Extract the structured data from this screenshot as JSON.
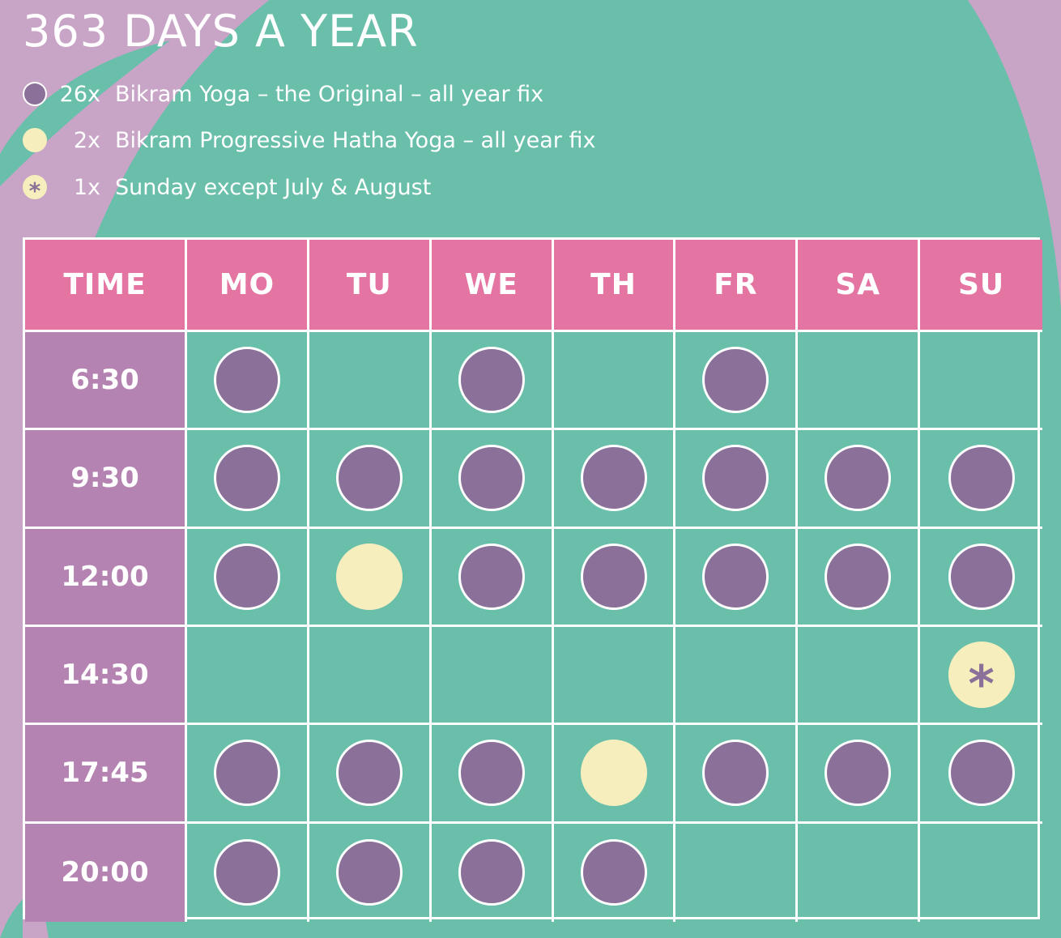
{
  "title": "363  DAYS A YEAR",
  "colors": {
    "background_pink": "#c8a4c6",
    "background_teal": "#6abfab",
    "header_pink": "#e474a2",
    "time_column": "#b483b1",
    "bikram_original": "#8b7199",
    "hatha": "#f6efbd"
  },
  "legend": [
    {
      "icon": "purple-dot-icon",
      "count": "26x",
      "label": "Bikram Yoga – the Original – all year fix"
    },
    {
      "icon": "cream-dot-icon",
      "count": "2x",
      "label": "Bikram Progressive Hatha Yoga – all year fix"
    },
    {
      "icon": "asterisk-dot-icon",
      "count": "1x",
      "label": "Sunday except July & August"
    }
  ],
  "schedule": {
    "headers": [
      "TIME",
      "MO",
      "TU",
      "WE",
      "TH",
      "FR",
      "SA",
      "SU"
    ],
    "rows": [
      {
        "time": "6:30",
        "classes": [
          "original",
          "",
          "original",
          "",
          "original",
          "",
          ""
        ]
      },
      {
        "time": "9:30",
        "classes": [
          "original",
          "original",
          "original",
          "original",
          "original",
          "original",
          "original"
        ]
      },
      {
        "time": "12:00",
        "classes": [
          "original",
          "hatha",
          "original",
          "original",
          "original",
          "original",
          "original"
        ]
      },
      {
        "time": "14:30",
        "classes": [
          "",
          "",
          "",
          "",
          "",
          "",
          "sunday"
        ]
      },
      {
        "time": "17:45",
        "classes": [
          "original",
          "original",
          "original",
          "hatha",
          "original",
          "original",
          "original"
        ]
      },
      {
        "time": "20:00",
        "classes": [
          "original",
          "original",
          "original",
          "original",
          "",
          "",
          ""
        ]
      }
    ],
    "sunday_marker": "*"
  }
}
